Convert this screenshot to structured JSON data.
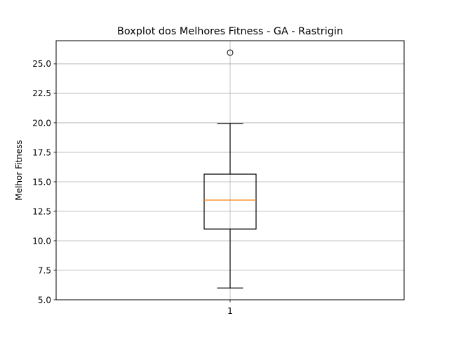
{
  "chart_data": {
    "type": "boxplot",
    "title": "Boxplot dos Melhores Fitness - GA - Rastrigin",
    "xlabel": "",
    "ylabel": "Melhor Fitness",
    "ylim": [
      5.0,
      26.96
    ],
    "yticks": [
      "5.0",
      "7.5",
      "10.0",
      "12.5",
      "15.0",
      "17.5",
      "20.0",
      "22.5",
      "25.0"
    ],
    "ytick_values": [
      5.0,
      7.5,
      10.0,
      12.5,
      15.0,
      17.5,
      20.0,
      22.5,
      25.0
    ],
    "categories": [
      "1"
    ],
    "grid": true,
    "boxes": [
      {
        "category": "1",
        "whisker_low": 6.0,
        "q1": 11.0,
        "median": 13.45,
        "q3": 15.65,
        "whisker_high": 19.95,
        "outliers": [
          25.95
        ]
      }
    ],
    "colors": {
      "box": "#000000",
      "median": "#ff7f0e",
      "grid": "#b0b0b0",
      "axes": "#000000"
    }
  }
}
